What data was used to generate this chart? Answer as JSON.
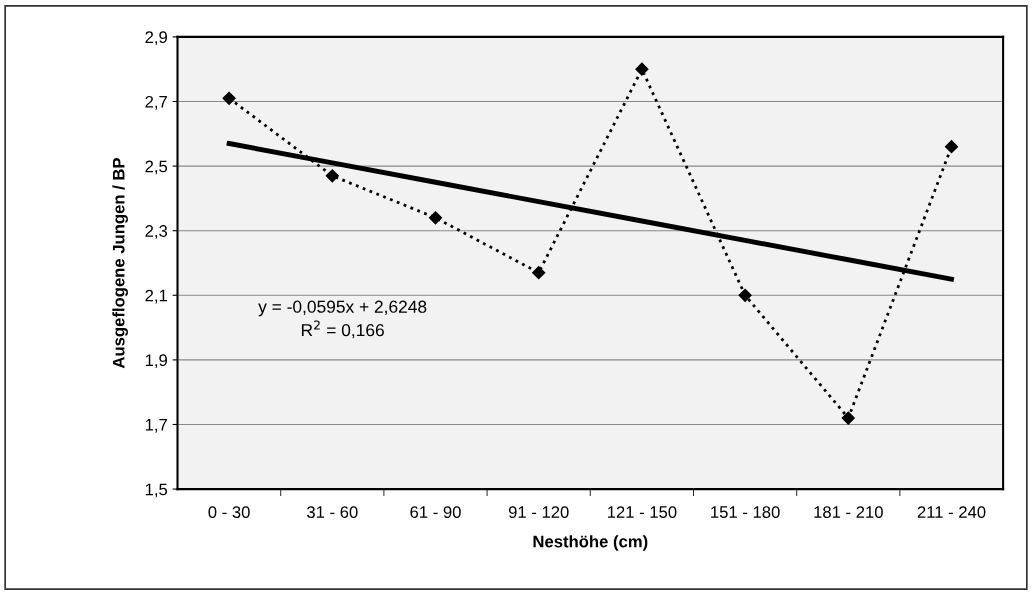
{
  "chart_data": {
    "type": "line",
    "xlabel": "Nesthöhe (cm)",
    "ylabel": "Ausgeflogene Jungen / BP",
    "categories": [
      "0 - 30",
      "31 - 60",
      "61 - 90",
      "91 - 120",
      "121 - 150",
      "151 - 180",
      "181 - 210",
      "211 - 240"
    ],
    "series": [
      {
        "color": "#000000",
        "marker": "diamond",
        "line_style": "dotted",
        "values": [
          2.71,
          2.47,
          2.34,
          2.17,
          2.8,
          2.1,
          1.72,
          2.56
        ]
      },
      {
        "color": "#000000",
        "marker": "none",
        "line_style": "solid",
        "values": [
          2.57,
          2.51,
          2.45,
          2.39,
          2.33,
          2.27,
          2.21,
          2.15
        ]
      }
    ],
    "ylim": [
      1.5,
      2.9
    ],
    "yticks": [
      {
        "value": 1.5,
        "label": "1,5"
      },
      {
        "value": 1.7,
        "label": "1,7"
      },
      {
        "value": 1.9,
        "label": "1,9"
      },
      {
        "value": 2.1,
        "label": "2,1"
      },
      {
        "value": 2.3,
        "label": "2,3"
      },
      {
        "value": 2.5,
        "label": "2,5"
      },
      {
        "value": 2.7,
        "label": "2,7"
      },
      {
        "value": 2.9,
        "label": "2,9"
      }
    ],
    "grid": "y",
    "annotations": [
      "y = -0,0595x + 2,6248",
      "R$^{2}$ = 0,166"
    ]
  }
}
